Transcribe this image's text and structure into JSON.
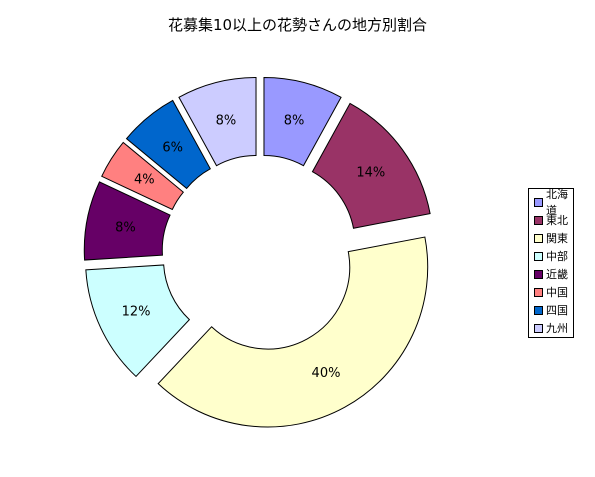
{
  "chart_data": {
    "type": "pie",
    "variant": "exploded-doughnut",
    "title": "花募集10以上の花勢さんの地方別割合",
    "categories": [
      "北海道",
      "東北",
      "関東",
      "中部",
      "近畿",
      "中国",
      "四国",
      "九州"
    ],
    "values": [
      8,
      14,
      40,
      12,
      8,
      4,
      6,
      8
    ],
    "labels": [
      "8%",
      "14%",
      "40%",
      "12%",
      "8%",
      "4%",
      "6%",
      "8%"
    ],
    "colors": [
      "#9999FF",
      "#993366",
      "#FFFFCC",
      "#CCFFFF",
      "#660066",
      "#FF8080",
      "#0066CC",
      "#CCCCFF"
    ],
    "legend_position": "right"
  }
}
